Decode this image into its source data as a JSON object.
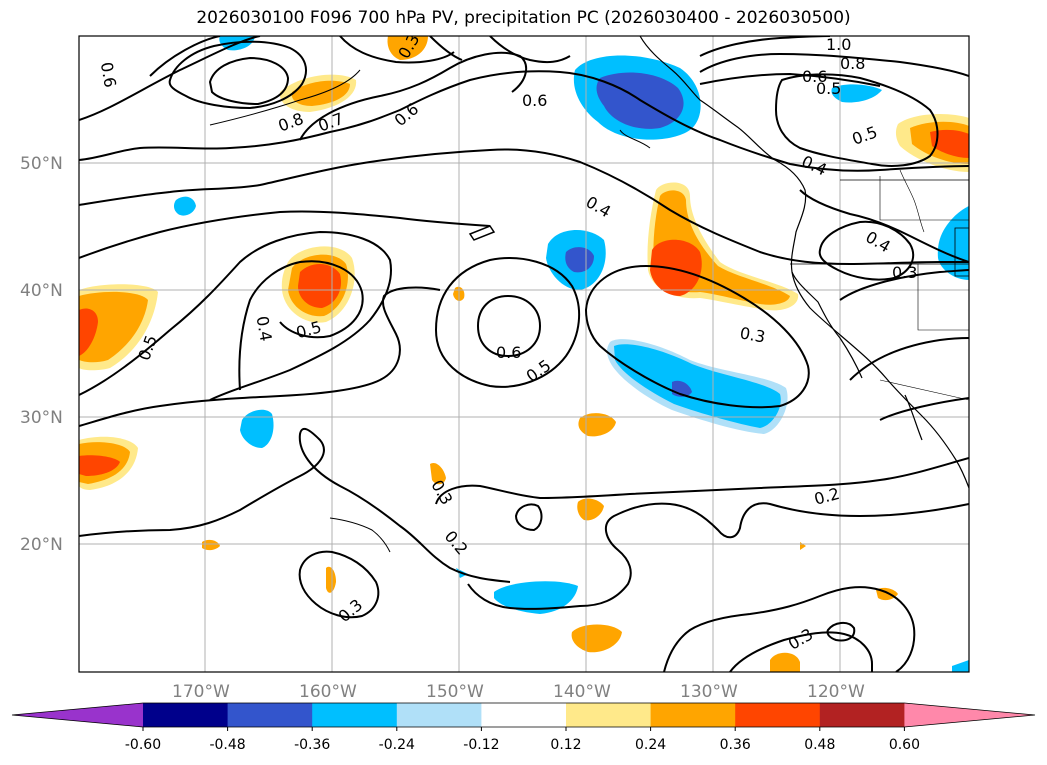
{
  "title": "2026030100 F096 700 hPa PV, precipitation PC (2026030400 - 2026030500)",
  "map": {
    "lat_labels": [
      "50°N",
      "40°N",
      "30°N",
      "20°N"
    ],
    "lon_labels": [
      "170°W",
      "160°W",
      "150°W",
      "140°W",
      "130°W",
      "120°W"
    ],
    "contour_labels": [
      "1.0",
      "0.8",
      "0.6",
      "0.5",
      "0.6",
      "0.8",
      "0.7",
      "0.6",
      "0.6",
      "0.5",
      "0.4",
      "0.3",
      "0.4",
      "0.4",
      "0.3",
      "0.5",
      "0.4",
      "0.5",
      "0.6",
      "0.5",
      "0.3",
      "0.3",
      "0.2",
      "0.2",
      "0.3",
      "0.3"
    ]
  },
  "colorbar": {
    "ticks": [
      "-0.60",
      "-0.48",
      "-0.36",
      "-0.24",
      "-0.12",
      "0.12",
      "0.24",
      "0.36",
      "0.48",
      "0.60"
    ],
    "colors": [
      "#9933cc",
      "#00008b",
      "#3355cc",
      "#00bfff",
      "#b0e0f8",
      "#ffffff",
      "#ffe98a",
      "#ffa500",
      "#ff4500",
      "#b22222",
      "#ff88aa"
    ]
  }
}
